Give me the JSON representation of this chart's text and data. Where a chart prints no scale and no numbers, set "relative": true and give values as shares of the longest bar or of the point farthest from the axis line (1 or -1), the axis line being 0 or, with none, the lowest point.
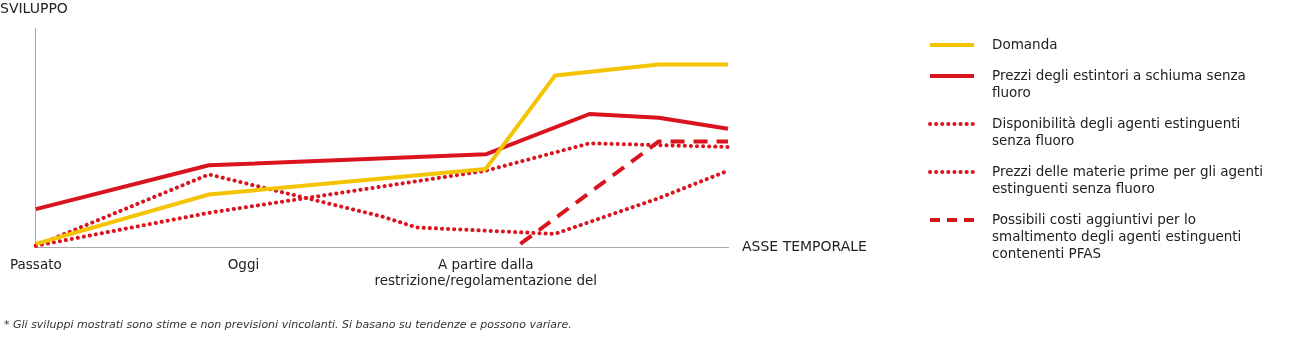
{
  "chart_data": {
    "type": "line",
    "ylabel": "SVILUPPO",
    "xlabel": "ASSE TEMPORALE",
    "relative": true,
    "tick_labels": "x",
    "legend": "right",
    "categories": [
      "Passato",
      null,
      null,
      null,
      null,
      null,
      "Oggi",
      null,
      null,
      null,
      null,
      null,
      null,
      "A partire dalla restrizione/regolamentazione del",
      null,
      null,
      null,
      null,
      null,
      null,
      null
    ],
    "series": [
      {
        "name": "Domanda",
        "color": "#f5c400",
        "line_style": "solid",
        "values": [
          0.02,
          null,
          null,
          null,
          null,
          0.29,
          null,
          null,
          null,
          null,
          null,
          null,
          null,
          0.43,
          null,
          0.94,
          null,
          null,
          1.0,
          null,
          1.0
        ]
      },
      {
        "name": "Prezzi degli estintori a schiuma senza fluoro",
        "color": "#d9141e",
        "line_style": "solid",
        "values": [
          0.21,
          null,
          null,
          null,
          null,
          0.45,
          null,
          null,
          null,
          null,
          null,
          null,
          null,
          0.51,
          null,
          null,
          0.73,
          null,
          0.71,
          null,
          0.65
        ]
      },
      {
        "name": "Disponibilità degli agenti estinguenti senza fluoro",
        "color": "#d9141e",
        "line_style": "dotted",
        "values": [
          0.01,
          null,
          null,
          null,
          null,
          0.4,
          null,
          null,
          null,
          null,
          0.17,
          0.11,
          null,
          null,
          null,
          0.075,
          null,
          null,
          0.27,
          null,
          0.42
        ]
      },
      {
        "name": "Prezzi delle materie prime per gli agenti estinguenti senza fluoro",
        "color": "#d9141e",
        "line_style": "dotted",
        "values": [
          0.01,
          null,
          null,
          null,
          null,
          0.19,
          null,
          null,
          null,
          null,
          null,
          null,
          null,
          0.42,
          null,
          null,
          0.57,
          null,
          null,
          null,
          0.55
        ]
      },
      {
        "name": "Possibili costi aggiuntivi per lo smaltimento degli agenti estinguenti contenenti PFAS",
        "color": "#d9141e",
        "line_style": "dashed",
        "values": [
          null,
          null,
          null,
          null,
          null,
          null,
          null,
          null,
          null,
          null,
          null,
          null,
          null,
          null,
          0.02,
          null,
          null,
          null,
          0.58,
          null,
          0.58
        ]
      }
    ],
    "annotations": [
      "* Gli sviluppi mostrati sono stime e non previsioni vincolanti. Si basano su tendenze e possono variare."
    ]
  }
}
